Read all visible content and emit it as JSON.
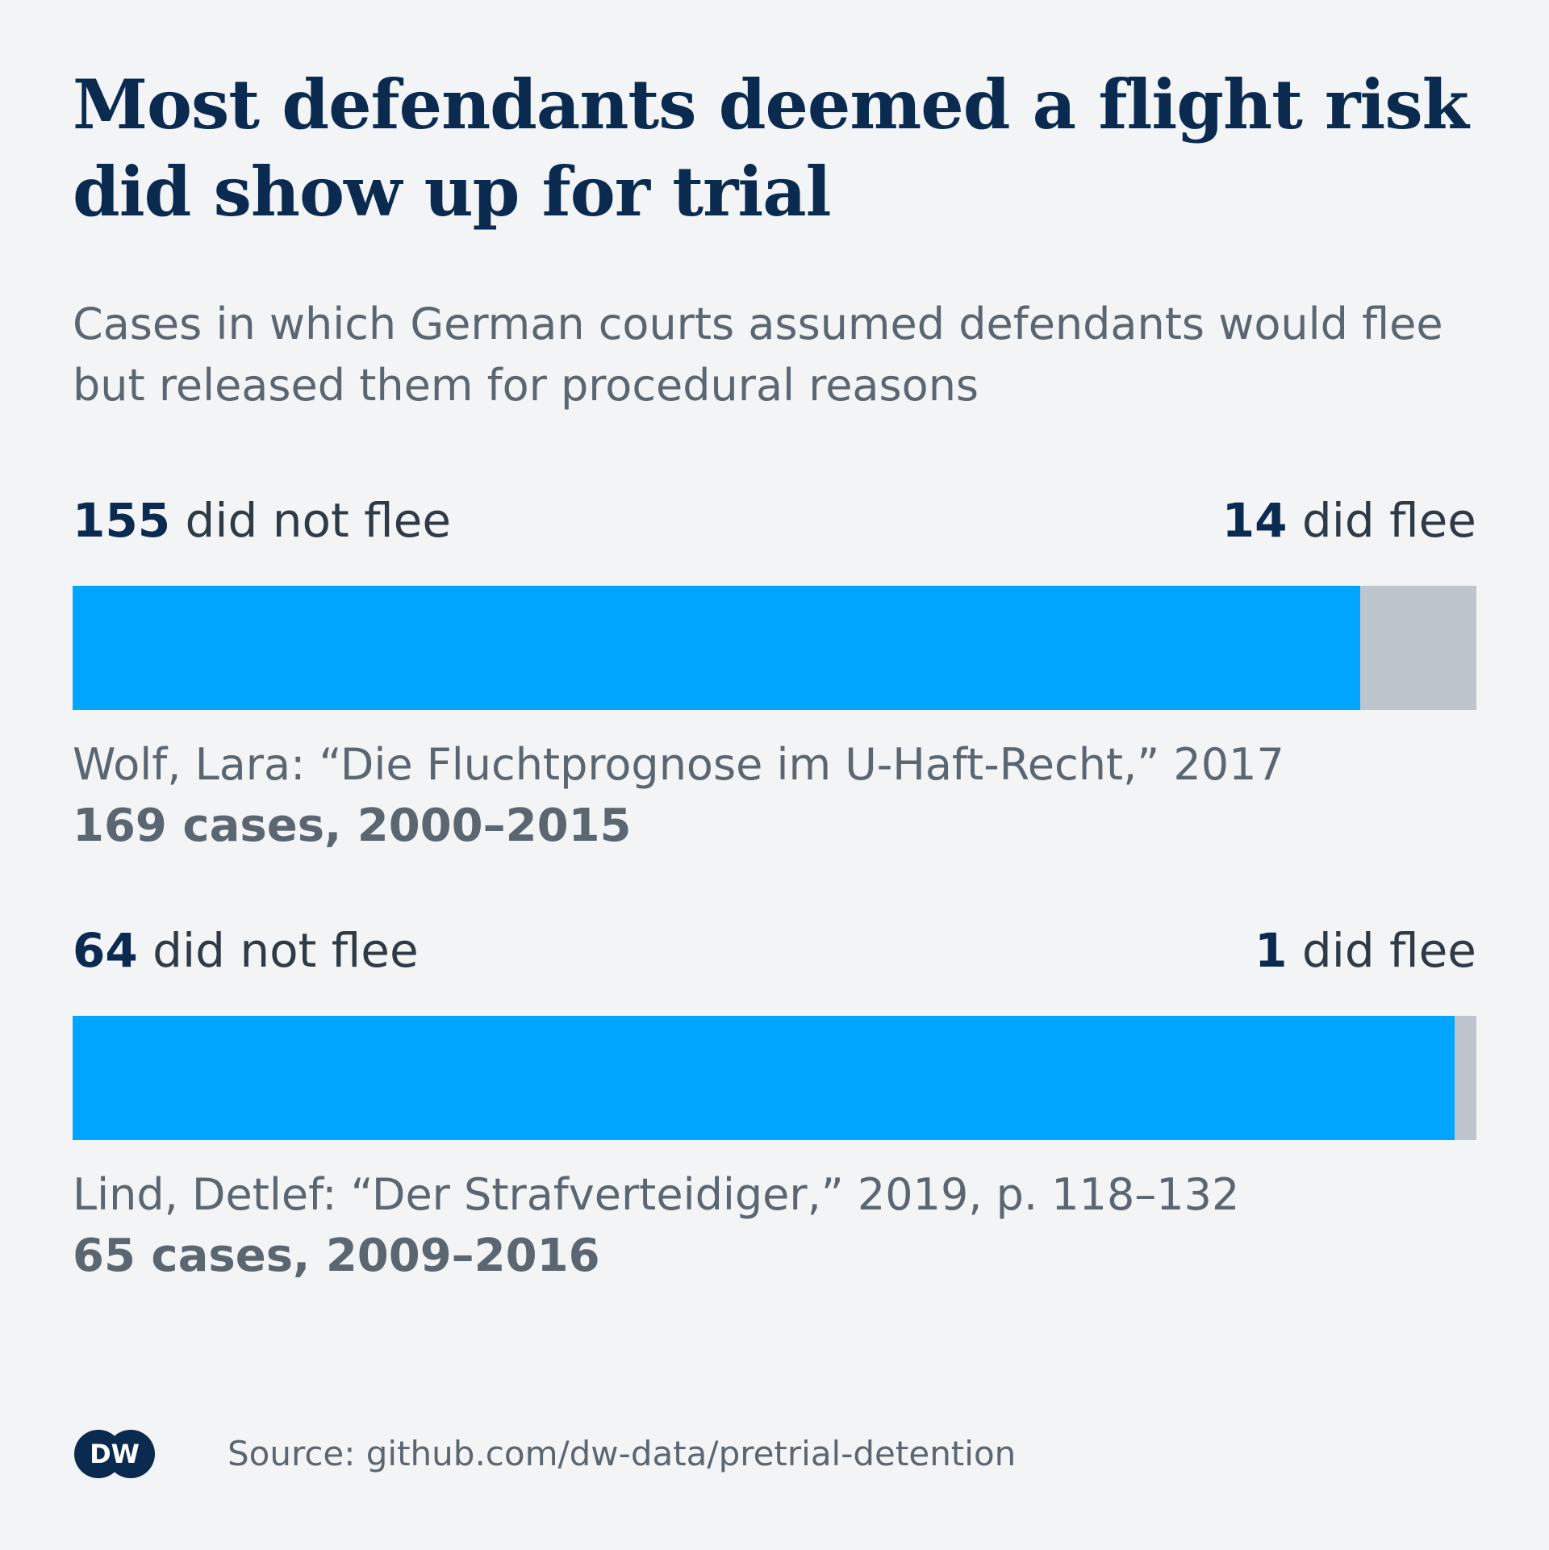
{
  "title": "Most defendants deemed a flight risk did show up for trial",
  "subtitle": "Cases in which German courts assumed defendants would flee but released them for procedural reasons",
  "colors": {
    "did_not_flee": "#00a5ff",
    "did_flee": "#bfc5cc",
    "title": "#0a2a50",
    "text_muted": "#5b6670",
    "background": "#f2f4f6"
  },
  "chart_data": {
    "type": "bar",
    "orientation": "horizontal",
    "stacked": true,
    "normalized": true,
    "categories": [
      "Wolf, Lara: “Die Fluchtprognose im U-Haft-Recht,” 2017",
      "Lind, Detlef: “Der Strafverteidiger,” 2019, p. 118–132"
    ],
    "series": [
      {
        "name": "did not flee",
        "values": [
          155,
          64
        ]
      },
      {
        "name": "did flee",
        "values": [
          14,
          1
        ]
      }
    ],
    "studies": [
      {
        "not_fled_num": "155",
        "not_fled_text": " did not flee",
        "fled_num": "14",
        "fled_text": " did flee",
        "not_fled": 155,
        "fled": 14,
        "reference": "Wolf, Lara: “Die Fluchtprognose im U-Haft-Recht,” 2017",
        "cases": "169 cases, 2000–2015"
      },
      {
        "not_fled_num": "64",
        "not_fled_text": " did not flee",
        "fled_num": "1",
        "fled_text": " did flee",
        "not_fled": 64,
        "fled": 1,
        "reference": "Lind, Detlef: “Der Strafverteidiger,” 2019, p. 118–132",
        "cases": "65 cases, 2009–2016"
      }
    ]
  },
  "footer": {
    "logo_text": "DW",
    "source": "Source: github.com/dw-data/pretrial-detention"
  }
}
